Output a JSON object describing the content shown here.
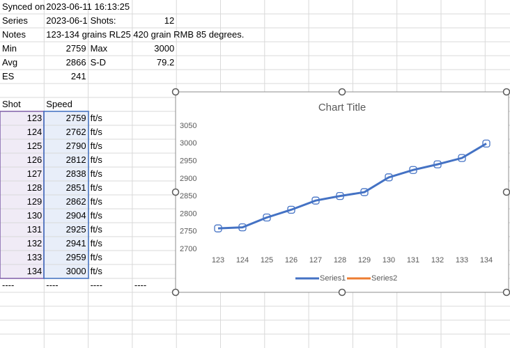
{
  "sheet": {
    "rows": [
      [
        "Synced on",
        "2023-06-11 16:13:25"
      ],
      [
        "Series",
        "2023-06-1",
        "Shots:",
        12
      ],
      [
        "Notes",
        "123-134 grains RL25 420 grain RMB 85 degrees."
      ],
      [
        "Min",
        2759,
        "Max",
        3000
      ],
      [
        "Avg",
        2866,
        "S-D",
        79.2
      ],
      [
        "ES",
        241
      ],
      [],
      [
        "Shot",
        "Speed"
      ],
      [
        123,
        2759,
        "ft/s"
      ],
      [
        124,
        2762,
        "ft/s"
      ],
      [
        125,
        2790,
        "ft/s"
      ],
      [
        126,
        2812,
        "ft/s"
      ],
      [
        127,
        2838,
        "ft/s"
      ],
      [
        128,
        2851,
        "ft/s"
      ],
      [
        129,
        2862,
        "ft/s"
      ],
      [
        130,
        2904,
        "ft/s"
      ],
      [
        131,
        2925,
        "ft/s"
      ],
      [
        132,
        2941,
        "ft/s"
      ],
      [
        133,
        2959,
        "ft/s"
      ],
      [
        134,
        3000,
        "ft/s"
      ],
      [
        "----",
        "----",
        "----",
        "----"
      ]
    ]
  },
  "chart_data": {
    "type": "line",
    "title": "Chart Title",
    "categories": [
      "123",
      "124",
      "125",
      "126",
      "127",
      "128",
      "129",
      "130",
      "131",
      "132",
      "133",
      "134"
    ],
    "series": [
      {
        "name": "Series1",
        "color": "#4472c4",
        "values": [
          2759,
          2762,
          2790,
          2812,
          2838,
          2851,
          2862,
          2904,
          2925,
          2941,
          2959,
          3000
        ]
      },
      {
        "name": "Series2",
        "color": "#ed7d31",
        "values": [
          null,
          null,
          null,
          null,
          null,
          null,
          null,
          null,
          null,
          null,
          null,
          null
        ]
      }
    ],
    "ylim": [
      2700,
      3050
    ],
    "yticks": [
      2700,
      2750,
      2800,
      2850,
      2900,
      2950,
      3000,
      3050
    ],
    "grid": false,
    "legend": "bottom"
  }
}
